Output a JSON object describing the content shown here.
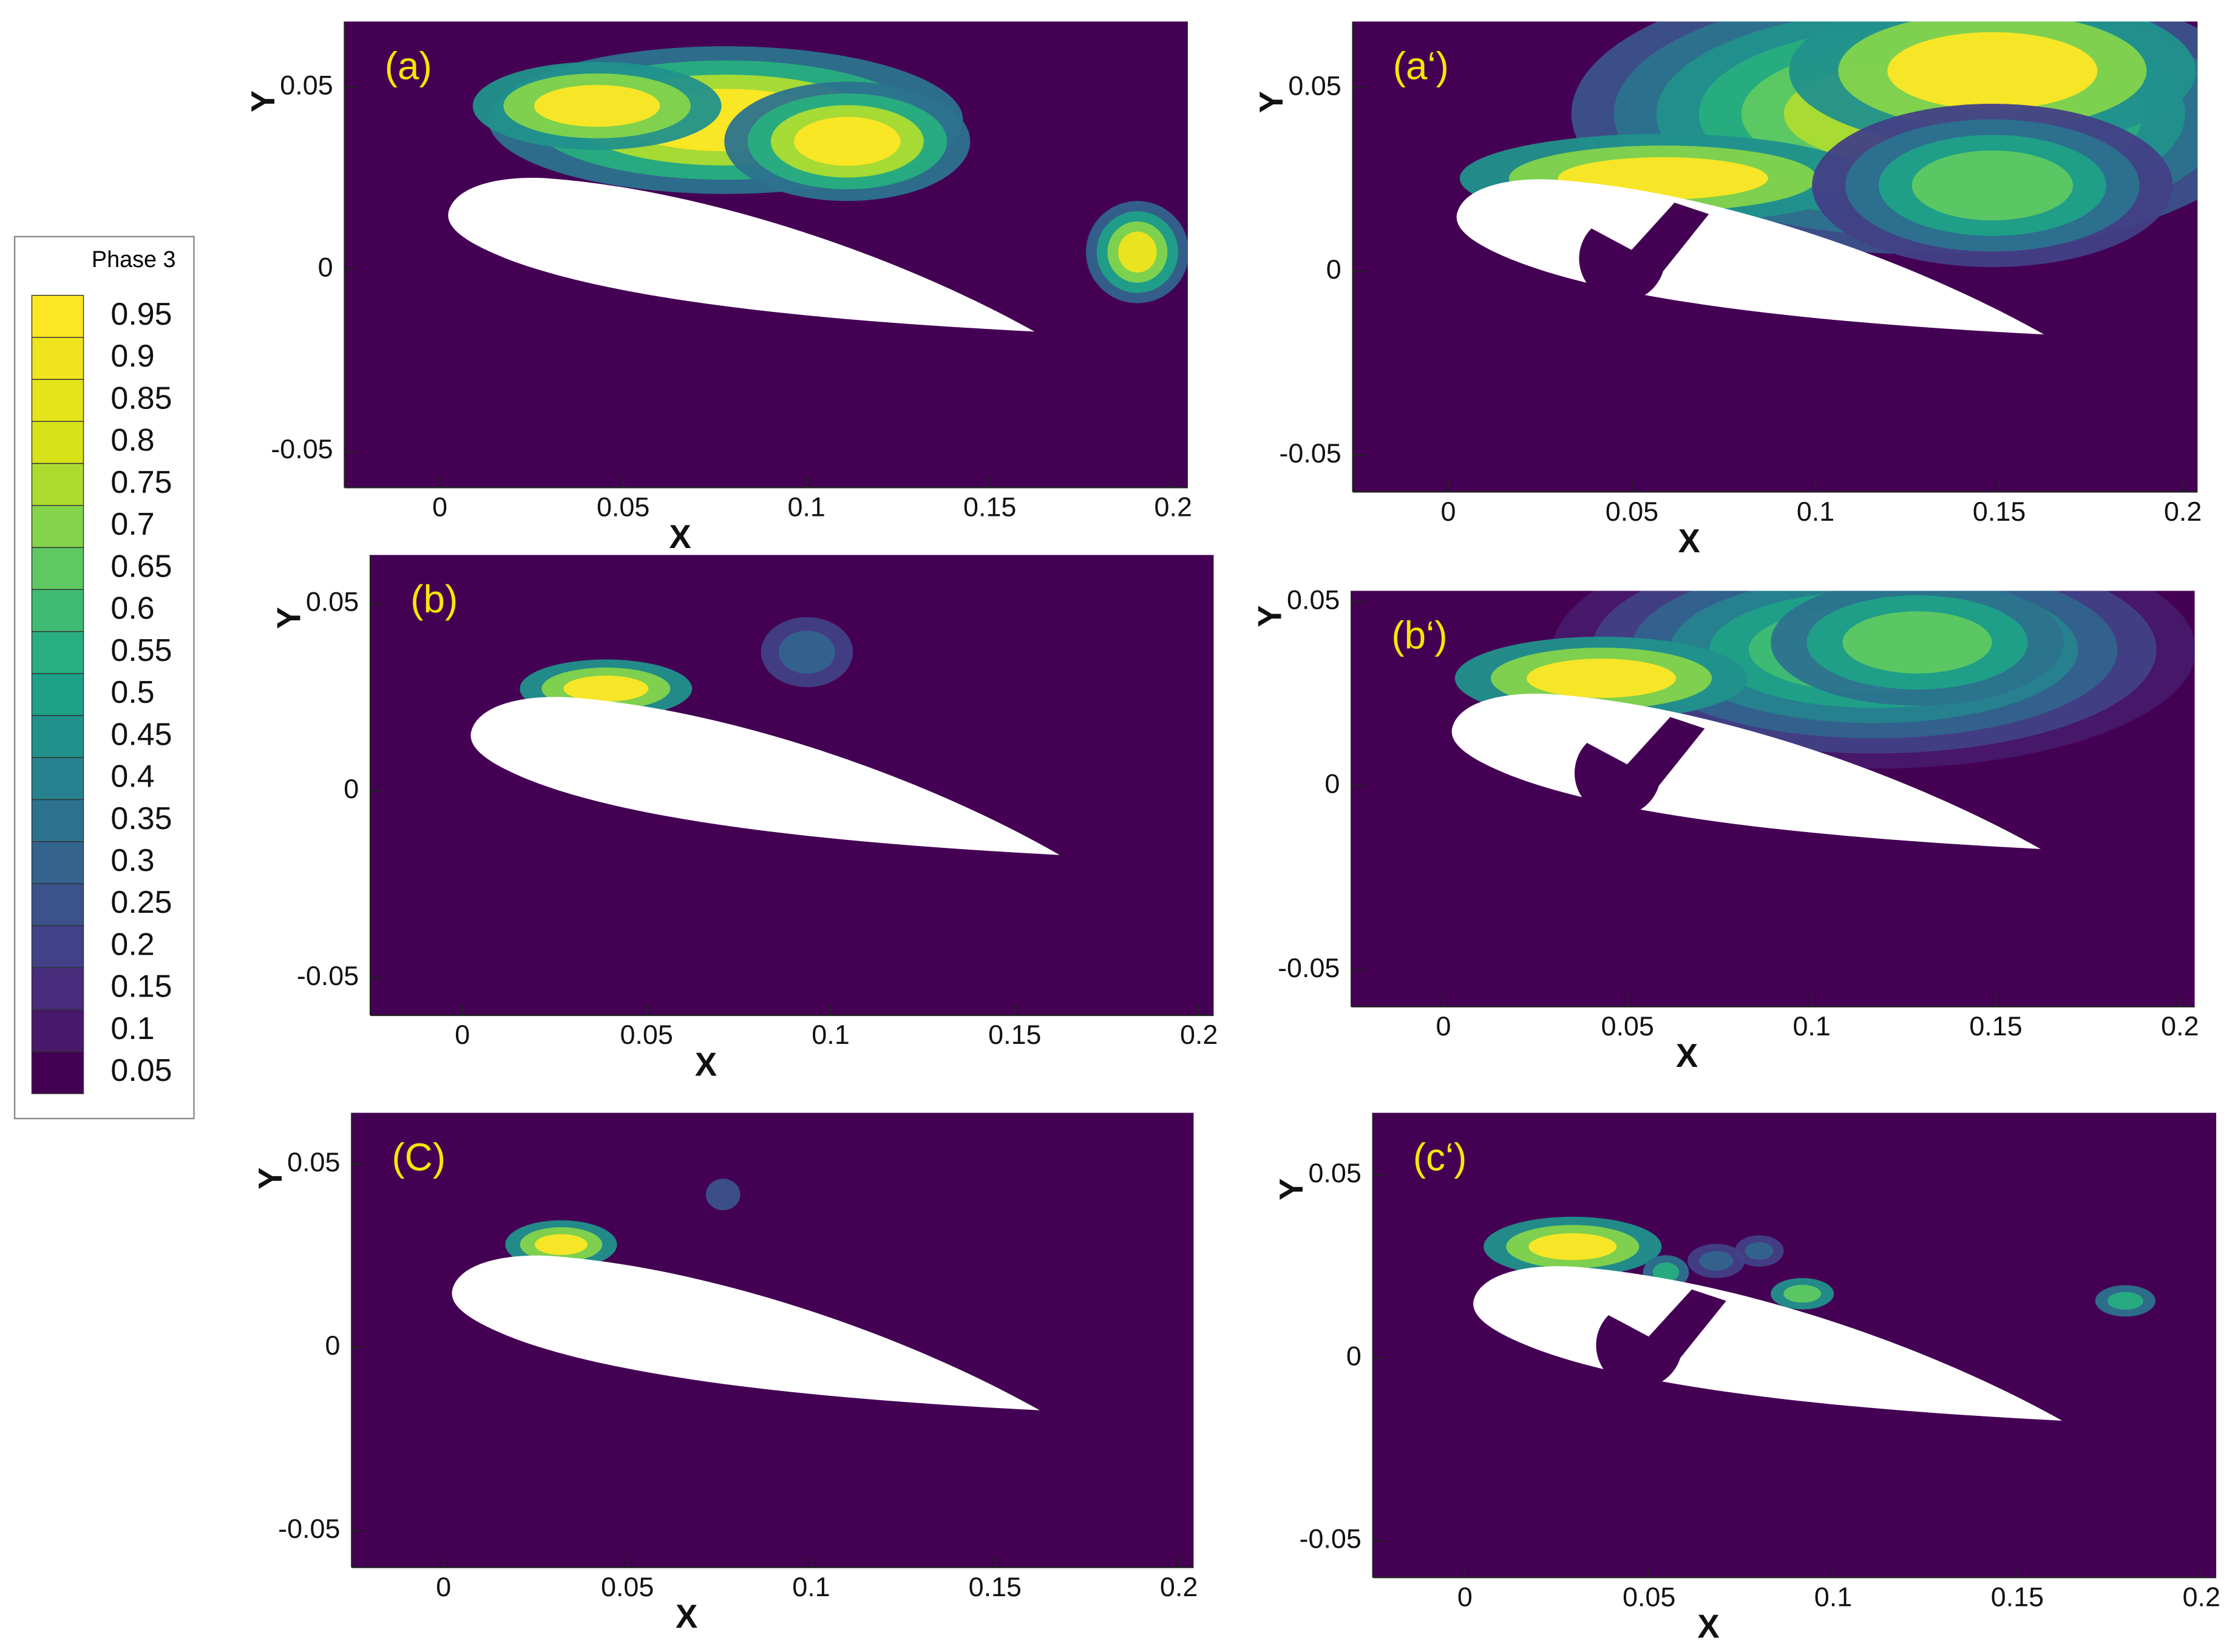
{
  "colorbar": {
    "title": "Phase 3",
    "levels": [
      0.05,
      0.1,
      0.15,
      0.2,
      0.25,
      0.3,
      0.35,
      0.4,
      0.45,
      0.5,
      0.55,
      0.6,
      0.65,
      0.7,
      0.75,
      0.8,
      0.85,
      0.9,
      0.95
    ],
    "colors": [
      "#440154",
      "#48186a",
      "#472d7b",
      "#424086",
      "#3b528b",
      "#33638d",
      "#2c728e",
      "#26828e",
      "#21918c",
      "#1fa088",
      "#28ae80",
      "#3fbc73",
      "#5ec962",
      "#84d44b",
      "#addc30",
      "#d8e219",
      "#e5e419",
      "#f0e41c",
      "#fde725"
    ]
  },
  "panels": [
    {
      "label": "(a)",
      "xlabel": "X",
      "ylabel": "Y",
      "xlim": [
        -0.026,
        0.204
      ],
      "ylim": [
        -0.06,
        0.068
      ],
      "xticks": [
        0,
        0.05,
        0.1,
        0.15,
        0.2
      ],
      "yticks": [
        -0.05,
        0,
        0.05
      ]
    },
    {
      "label": "(a‘)",
      "xlabel": "X",
      "ylabel": "Y",
      "xlim": [
        -0.026,
        0.204
      ],
      "ylim": [
        -0.06,
        0.068
      ],
      "xticks": [
        0,
        0.05,
        0.1,
        0.15,
        0.2
      ],
      "yticks": [
        -0.05,
        0,
        0.05
      ]
    },
    {
      "label": "(b)",
      "xlabel": "X",
      "ylabel": "Y",
      "xlim": [
        -0.025,
        0.204
      ],
      "ylim": [
        -0.06,
        0.063
      ],
      "xticks": [
        0,
        0.05,
        0.1,
        0.15,
        0.2
      ],
      "yticks": [
        -0.05,
        0,
        0.05
      ]
    },
    {
      "label": "(b‘)",
      "xlabel": "X",
      "ylabel": "Y",
      "xlim": [
        -0.025,
        0.204
      ],
      "ylim": [
        -0.06,
        0.053
      ],
      "xticks": [
        0,
        0.05,
        0.1,
        0.15,
        0.2
      ],
      "yticks": [
        -0.05,
        0,
        0.05
      ]
    },
    {
      "label": "(C)",
      "xlabel": "X",
      "ylabel": "Y",
      "xlim": [
        -0.025,
        0.204
      ],
      "ylim": [
        -0.06,
        0.064
      ],
      "xticks": [
        0,
        0.05,
        0.1,
        0.15,
        0.2
      ],
      "yticks": [
        -0.05,
        0,
        0.05
      ]
    },
    {
      "label": "(c‘)",
      "xlabel": "X",
      "ylabel": "Y",
      "xlim": [
        -0.025,
        0.204
      ],
      "ylim": [
        -0.06,
        0.067
      ],
      "xticks": [
        0,
        0.05,
        0.1,
        0.15,
        0.2
      ],
      "yticks": [
        -0.05,
        0,
        0.05
      ]
    }
  ]
}
